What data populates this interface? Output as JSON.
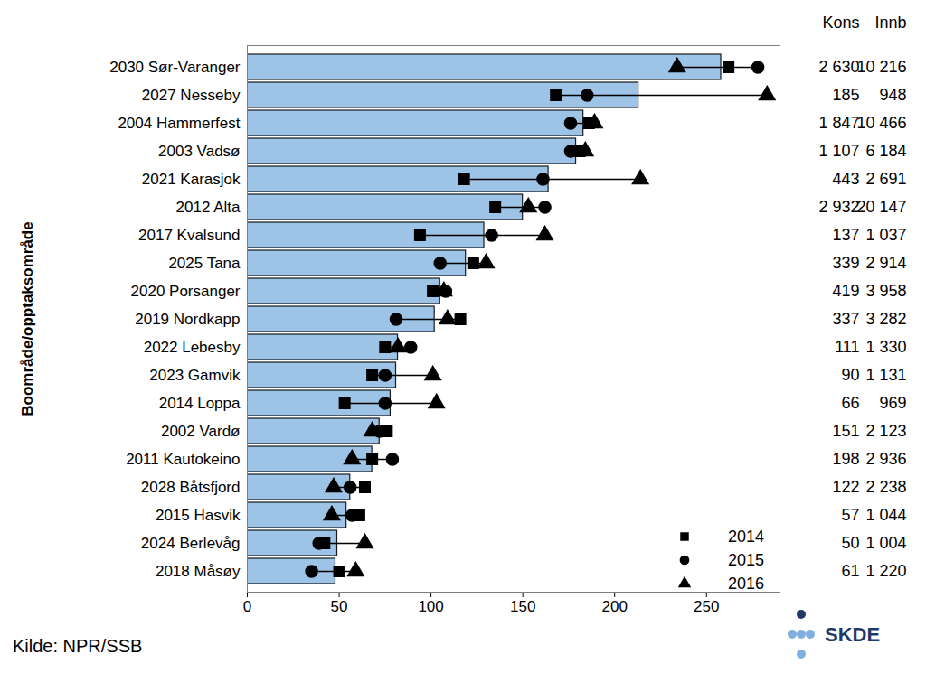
{
  "chart_data": {
    "type": "bar",
    "orientation": "horizontal",
    "y_label": "Boområde/opptaksområde",
    "source": "Kilde: NPR/SSB",
    "logo": "SKDE",
    "categories": [
      "2030 Sør-Varanger",
      "2027 Nesseby",
      "2004 Hammerfest",
      "2003 Vadsø",
      "2021 Karasjok",
      "2012 Alta",
      "2017 Kvalsund",
      "2025 Tana",
      "2020 Porsanger",
      "2019 Nordkapp",
      "2022 Lebesby",
      "2023 Gamvik",
      "2014 Loppa",
      "2002 Vardø",
      "2011 Kautokeino",
      "2028 Båtsfjord",
      "2015 Hasvik",
      "2024 Berlevåg",
      "2018 Måsøy"
    ],
    "values": [
      258,
      213,
      183,
      179,
      164,
      150,
      129,
      119,
      105,
      102,
      82,
      81,
      78,
      72,
      68,
      56,
      54,
      49,
      48
    ],
    "color": "#9dc3e6",
    "series": [
      {
        "name": "2014",
        "marker": "square",
        "color": "#000000",
        "values": [
          262,
          168,
          186,
          181,
          118,
          135,
          94,
          123,
          101,
          116,
          75,
          68,
          53,
          76,
          68,
          64,
          61,
          42,
          50
        ]
      },
      {
        "name": "2015",
        "marker": "circle",
        "color": "#000000",
        "values": [
          278,
          185,
          176,
          176,
          161,
          162,
          133,
          105,
          108,
          81,
          89,
          75,
          75,
          72,
          79,
          56,
          57,
          39,
          35
        ]
      },
      {
        "name": "2016",
        "marker": "triangle",
        "color": "#000000",
        "values": [
          234,
          283,
          189,
          184,
          214,
          153,
          162,
          130,
          107,
          109,
          82,
          101,
          103,
          68,
          57,
          47,
          46,
          64,
          59
        ]
      }
    ],
    "xlim": [
      0,
      290
    ],
    "xticks": [
      0,
      50,
      100,
      150,
      200,
      250
    ],
    "grid": false,
    "legend": "lower right",
    "columns": [
      {
        "name": "Kons",
        "values": [
          2630,
          185,
          1847,
          1107,
          443,
          2932,
          137,
          339,
          419,
          337,
          111,
          90,
          66,
          151,
          198,
          122,
          57,
          50,
          61
        ],
        "value_labels": [
          "2 630",
          "185",
          "1 847",
          "1 107",
          "443",
          "2 932",
          "137",
          "339",
          "419",
          "337",
          "111",
          "90",
          "66",
          "151",
          "198",
          "122",
          "57",
          "50",
          "61"
        ]
      },
      {
        "name": "Innb",
        "values": [
          10216,
          948,
          10466,
          6184,
          2691,
          20147,
          1037,
          2914,
          3958,
          3282,
          1330,
          1131,
          969,
          2123,
          2936,
          2238,
          1044,
          1004,
          1220
        ],
        "value_labels": [
          "10 216",
          "948",
          "10 466",
          "6 184",
          "2 691",
          "20 147",
          "1 037",
          "2 914",
          "3 958",
          "3 282",
          "1 330",
          "1 131",
          "969",
          "2 123",
          "2 936",
          "2 238",
          "1 044",
          "1 004",
          "1 220"
        ]
      }
    ]
  }
}
